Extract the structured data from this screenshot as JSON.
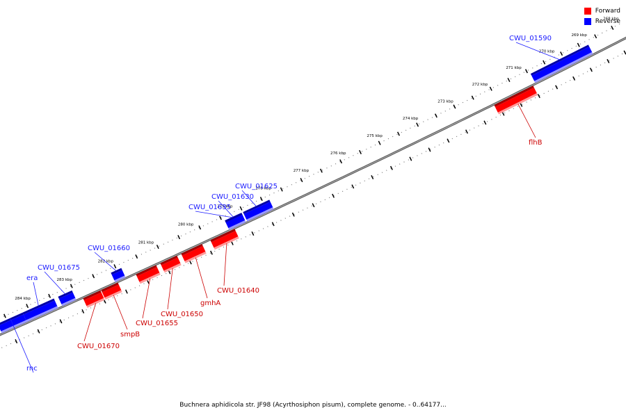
{
  "caption": "Buchnera aphidicola str. JF98 (Acyrthosiphon pisum), complete genome. - 0..64177...",
  "legend": [
    {
      "label": "Forward",
      "color": "#ff0000"
    },
    {
      "label": "Reverse",
      "color": "#0000ff"
    }
  ],
  "colors": {
    "forward": "#ff0000",
    "reverse": "#0000ff",
    "forward_label": "#cc0000",
    "reverse_label": "#1a1aff",
    "backbone": "#808080"
  },
  "ticks": [
    {
      "label": "268 kbp"
    },
    {
      "label": "269 kbp"
    },
    {
      "label": "270 kbp"
    },
    {
      "label": "271 kbp"
    },
    {
      "label": "272 kbp"
    },
    {
      "label": "273 kbp"
    },
    {
      "label": "274 kbp"
    },
    {
      "label": "275 kbp"
    },
    {
      "label": "276 kbp"
    },
    {
      "label": "277 kbp"
    },
    {
      "label": "278 kbp"
    },
    {
      "label": "279 kbp"
    },
    {
      "label": "280 kbp"
    },
    {
      "label": "281 kbp"
    },
    {
      "label": "282 kbp"
    },
    {
      "label": "283 kbp"
    },
    {
      "label": "284 kbp"
    }
  ],
  "genes": [
    {
      "name": "CWU_01590",
      "strand": "reverse"
    },
    {
      "name": "flhB",
      "strand": "forward"
    },
    {
      "name": "CWU_01625",
      "strand": "reverse"
    },
    {
      "name": "CWU_01630",
      "strand": "reverse"
    },
    {
      "name": "CWU_01635",
      "strand": "reverse"
    },
    {
      "name": "CWU_01640",
      "strand": "forward"
    },
    {
      "name": "gmhA",
      "strand": "forward"
    },
    {
      "name": "CWU_01650",
      "strand": "forward"
    },
    {
      "name": "CWU_01655",
      "strand": "forward"
    },
    {
      "name": "CWU_01660",
      "strand": "reverse"
    },
    {
      "name": "smpB",
      "strand": "forward"
    },
    {
      "name": "CWU_01670",
      "strand": "forward"
    },
    {
      "name": "CWU_01675",
      "strand": "reverse"
    },
    {
      "name": "era",
      "strand": "reverse"
    },
    {
      "name": "rnc",
      "strand": "reverse"
    }
  ]
}
